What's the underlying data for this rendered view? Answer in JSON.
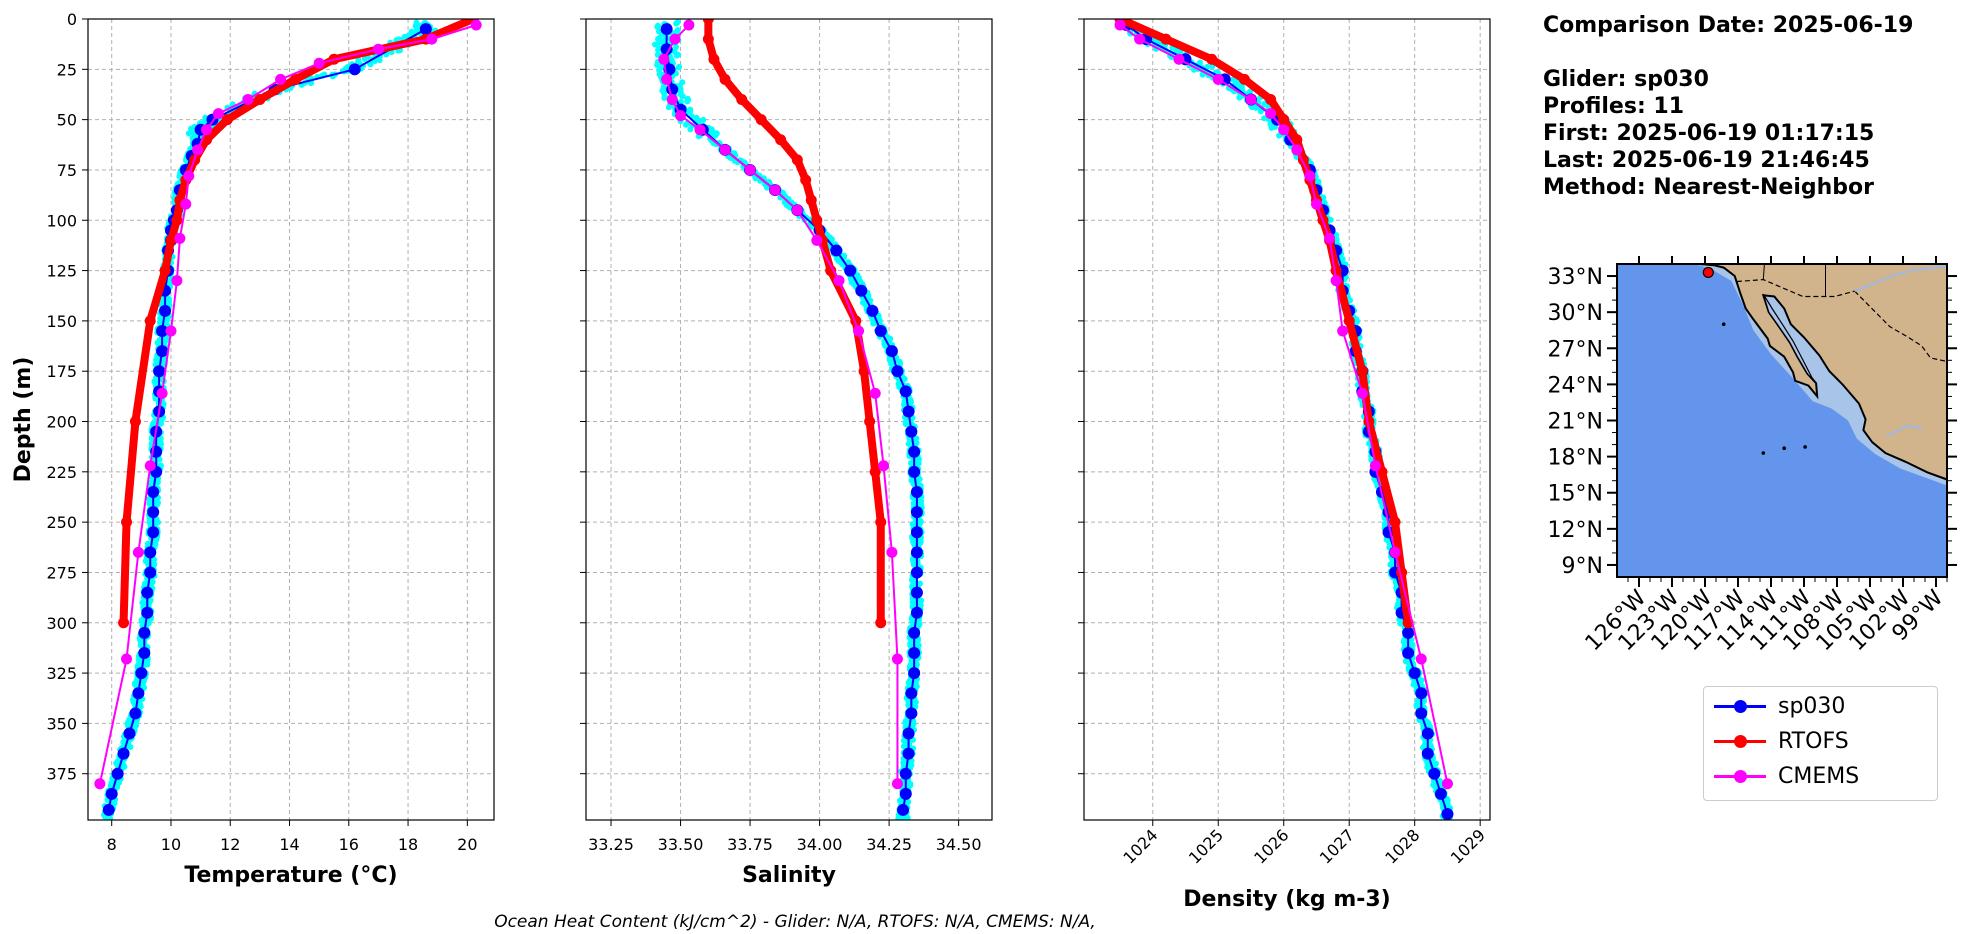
{
  "info": {
    "comparison_date": "Comparison Date: 2025-06-19",
    "glider": "Glider: sp030",
    "profiles": "Profiles: 11",
    "first": "First: 2025-06-19 01:17:15",
    "last": "Last: 2025-06-19 21:46:45",
    "method": "Method: Nearest-Neighbor"
  },
  "footer": "Ocean Heat Content (kJ/cm^2) - Glider: N/A,  RTOFS: N/A,  CMEMS: N/A,",
  "legend": [
    {
      "name": "sp030",
      "color": "#0000ff"
    },
    {
      "name": "RTOFS",
      "color": "#ff0000"
    },
    {
      "name": "CMEMS",
      "color": "#ff00ff"
    }
  ],
  "colors": {
    "glider_scatter": "#00ffff",
    "ocean": "#6495ed",
    "land": "#d2b48c",
    "shelf": "#a8c4e8"
  },
  "chart_data": [
    {
      "type": "line",
      "title": "",
      "xlabel": "Temperature (°C)",
      "ylabel": "Depth (m)",
      "xlim": [
        7.2,
        20.9
      ],
      "ylim": [
        398,
        0
      ],
      "xticks": [
        8,
        10,
        12,
        14,
        16,
        18,
        20
      ],
      "yticks": [
        0,
        25,
        50,
        75,
        100,
        125,
        150,
        175,
        200,
        225,
        250,
        275,
        300,
        325,
        350,
        375
      ],
      "grid": true,
      "series": [
        {
          "name": "sp030",
          "depth": [
            5,
            25,
            35,
            50,
            55,
            62,
            68,
            75,
            85,
            95,
            100,
            105,
            110,
            115,
            125,
            135,
            145,
            155,
            165,
            175,
            185,
            195,
            205,
            215,
            225,
            235,
            245,
            255,
            265,
            275,
            285,
            295,
            305,
            315,
            325,
            335,
            345,
            355,
            365,
            375,
            385,
            393
          ],
          "values": [
            18.6,
            16.2,
            13.5,
            11.4,
            11.0,
            10.9,
            10.7,
            10.5,
            10.3,
            10.2,
            10.1,
            10.0,
            10.0,
            9.9,
            9.9,
            9.8,
            9.8,
            9.7,
            9.7,
            9.6,
            9.6,
            9.6,
            9.5,
            9.5,
            9.5,
            9.4,
            9.4,
            9.4,
            9.3,
            9.3,
            9.2,
            9.2,
            9.1,
            9.1,
            9.0,
            8.9,
            8.8,
            8.6,
            8.4,
            8.2,
            8.0,
            7.9
          ]
        },
        {
          "name": "RTOFS",
          "depth": [
            0,
            10,
            20,
            30,
            40,
            50,
            60,
            70,
            80,
            90,
            100,
            110,
            125,
            150,
            200,
            250,
            300
          ],
          "values": [
            20.2,
            18.6,
            15.5,
            14.2,
            13.0,
            11.9,
            11.2,
            10.8,
            10.5,
            10.3,
            10.2,
            10.0,
            9.8,
            9.3,
            8.8,
            8.5,
            8.4
          ]
        },
        {
          "name": "CMEMS",
          "depth": [
            3,
            10,
            15,
            22,
            30,
            40,
            47,
            55,
            65,
            78,
            92,
            109,
            130,
            155,
            186,
            222,
            265,
            318,
            380
          ],
          "values": [
            20.3,
            18.8,
            17.0,
            15.0,
            13.7,
            12.6,
            11.6,
            11.2,
            10.9,
            10.6,
            10.5,
            10.3,
            10.2,
            10.0,
            9.7,
            9.3,
            8.9,
            8.5,
            7.6
          ]
        }
      ]
    },
    {
      "type": "line",
      "title": "",
      "xlabel": "Salinity",
      "ylabel": "",
      "xlim": [
        33.16,
        34.62
      ],
      "ylim": [
        398,
        0
      ],
      "xticks": [
        33.25,
        33.5,
        33.75,
        34.0,
        34.25,
        34.5
      ],
      "xtick_labels": [
        "33.25",
        "33.50",
        "33.75",
        "34.00",
        "34.25",
        "34.50"
      ],
      "yticks": [
        0,
        25,
        50,
        75,
        100,
        125,
        150,
        175,
        200,
        225,
        250,
        275,
        300,
        325,
        350,
        375
      ],
      "grid": true,
      "series": [
        {
          "name": "sp030",
          "depth": [
            5,
            15,
            25,
            35,
            45,
            55,
            65,
            75,
            85,
            95,
            105,
            115,
            125,
            135,
            145,
            155,
            165,
            175,
            185,
            195,
            205,
            215,
            225,
            235,
            245,
            255,
            265,
            275,
            285,
            295,
            305,
            315,
            325,
            335,
            345,
            355,
            365,
            375,
            385,
            393
          ],
          "values": [
            33.45,
            33.45,
            33.46,
            33.47,
            33.5,
            33.58,
            33.66,
            33.75,
            33.84,
            33.92,
            34.0,
            34.06,
            34.11,
            34.15,
            34.19,
            34.22,
            34.26,
            34.28,
            34.31,
            34.32,
            34.33,
            34.34,
            34.34,
            34.35,
            34.35,
            34.35,
            34.35,
            34.35,
            34.35,
            34.35,
            34.34,
            34.34,
            34.34,
            34.33,
            34.33,
            34.32,
            34.32,
            34.31,
            34.31,
            34.3
          ]
        },
        {
          "name": "RTOFS",
          "depth": [
            0,
            10,
            20,
            30,
            40,
            50,
            60,
            70,
            80,
            90,
            100,
            110,
            125,
            150,
            175,
            200,
            225,
            250,
            300
          ],
          "values": [
            33.6,
            33.6,
            33.62,
            33.66,
            33.72,
            33.79,
            33.86,
            33.92,
            33.95,
            33.97,
            33.99,
            34.01,
            34.04,
            34.13,
            34.16,
            34.18,
            34.2,
            34.22,
            34.22
          ]
        },
        {
          "name": "CMEMS",
          "depth": [
            3,
            10,
            20,
            30,
            40,
            48,
            55,
            65,
            75,
            85,
            95,
            110,
            130,
            155,
            186,
            222,
            265,
            318,
            380
          ],
          "values": [
            33.53,
            33.48,
            33.44,
            33.45,
            33.47,
            33.5,
            33.57,
            33.66,
            33.75,
            33.84,
            33.92,
            33.99,
            34.07,
            34.14,
            34.2,
            34.23,
            34.26,
            34.28,
            34.28
          ]
        }
      ]
    },
    {
      "type": "line",
      "title": "",
      "xlabel": "Density (kg m-3)",
      "ylabel": "",
      "xlim": [
        1022.95,
        1029.15
      ],
      "ylim": [
        398,
        0
      ],
      "xticks": [
        1024,
        1025,
        1026,
        1027,
        1028,
        1029
      ],
      "yticks": [
        0,
        25,
        50,
        75,
        100,
        125,
        150,
        175,
        200,
        225,
        250,
        275,
        300,
        325,
        350,
        375
      ],
      "grid": true,
      "series": [
        {
          "name": "sp030",
          "depth": [
            3,
            10,
            20,
            30,
            40,
            50,
            60,
            75,
            85,
            95,
            105,
            115,
            125,
            135,
            145,
            155,
            165,
            175,
            185,
            195,
            205,
            215,
            225,
            235,
            245,
            255,
            265,
            275,
            285,
            295,
            305,
            315,
            325,
            335,
            345,
            355,
            365,
            375,
            385,
            395
          ],
          "values": [
            1023.6,
            1023.9,
            1024.5,
            1025.1,
            1025.5,
            1025.9,
            1026.1,
            1026.4,
            1026.5,
            1026.6,
            1026.7,
            1026.8,
            1026.9,
            1026.9,
            1027.0,
            1027.1,
            1027.1,
            1027.2,
            1027.2,
            1027.3,
            1027.3,
            1027.4,
            1027.4,
            1027.5,
            1027.6,
            1027.6,
            1027.7,
            1027.7,
            1027.8,
            1027.8,
            1027.9,
            1027.9,
            1028.0,
            1028.1,
            1028.1,
            1028.2,
            1028.2,
            1028.3,
            1028.4,
            1028.5
          ]
        },
        {
          "name": "RTOFS",
          "depth": [
            0,
            10,
            20,
            30,
            40,
            50,
            60,
            70,
            80,
            90,
            100,
            110,
            125,
            150,
            175,
            200,
            225,
            250,
            275,
            300
          ],
          "values": [
            1023.5,
            1024.2,
            1024.9,
            1025.4,
            1025.8,
            1026.0,
            1026.2,
            1026.3,
            1026.4,
            1026.5,
            1026.6,
            1026.7,
            1026.8,
            1027.0,
            1027.2,
            1027.3,
            1027.5,
            1027.7,
            1027.8,
            1027.9
          ]
        },
        {
          "name": "CMEMS",
          "depth": [
            3,
            10,
            20,
            30,
            40,
            47,
            55,
            65,
            78,
            92,
            109,
            130,
            155,
            186,
            222,
            265,
            318,
            380
          ],
          "values": [
            1023.5,
            1023.8,
            1024.4,
            1025.0,
            1025.5,
            1025.8,
            1026.0,
            1026.2,
            1026.4,
            1026.5,
            1026.7,
            1026.8,
            1026.9,
            1027.2,
            1027.4,
            1027.7,
            1028.1,
            1028.5
          ]
        }
      ]
    }
  ],
  "map": {
    "lon_range": [
      -128,
      -98
    ],
    "lat_range": [
      8,
      34
    ],
    "lon_labels": [
      "126°W",
      "123°W",
      "120°W",
      "117°W",
      "114°W",
      "111°W",
      "108°W",
      "105°W",
      "102°W",
      "99°W"
    ],
    "lon_ticks": [
      -126,
      -123,
      -120,
      -117,
      -114,
      -111,
      -108,
      -105,
      -102,
      -99
    ],
    "lat_labels": [
      "33°N",
      "30°N",
      "27°N",
      "24°N",
      "21°N",
      "18°N",
      "15°N",
      "12°N",
      "9°N"
    ],
    "lat_ticks": [
      33,
      30,
      27,
      24,
      21,
      18,
      15,
      12,
      9
    ],
    "glider_location": {
      "lon": -119.7,
      "lat": 33.3
    }
  }
}
